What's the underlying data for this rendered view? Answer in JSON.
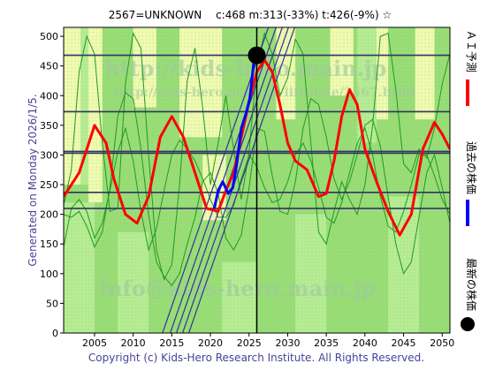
{
  "header": {
    "title": "2567=UNKNOWN　 c:468  m:313(-33%)  t:426(-9%)  ☆"
  },
  "side_labels": {
    "left": "Generated on Monday 2026/1/5.",
    "legend_prediction": "ＡＩ予測",
    "legend_past": "過去の株価",
    "legend_latest": "最新の株価"
  },
  "footer": {
    "copyright": "Copyright (c) Kids-Hero Research Institute. All Rights Reserved."
  },
  "watermarks": {
    "top": "http://kids-hero.main.jp",
    "mid": "http://kids-hero.main.jp/lifestyle/2567.html",
    "bottom": "info@kids-hero.main.jp"
  },
  "colors": {
    "plot_bg": "#99dd77",
    "band_light": "#ffffbb",
    "band_green": "#bbee99",
    "hline": "#333366",
    "thin_green": "#229922",
    "prediction": "#ff0000",
    "past": "#0000ff",
    "channel": "#333399",
    "latest_dot": "#000000"
  },
  "chart_data": {
    "type": "line",
    "xlim": [
      2001,
      2051
    ],
    "ylim": [
      0,
      515
    ],
    "x_ticks": [
      2005,
      2010,
      2015,
      2020,
      2025,
      2030,
      2035,
      2040,
      2045,
      2050
    ],
    "y_ticks": [
      0,
      50,
      100,
      150,
      200,
      250,
      300,
      350,
      400,
      450,
      500
    ],
    "grid": false,
    "horizontal_lines": [
      468,
      373,
      306,
      303,
      237,
      210
    ],
    "current_year": 2026,
    "latest": {
      "x": 2026,
      "y": 468
    },
    "series": [
      {
        "key": "prediction",
        "points": [
          [
            2001,
            230
          ],
          [
            2003,
            270
          ],
          [
            2005,
            350
          ],
          [
            2006.5,
            320
          ],
          [
            2007.5,
            260
          ],
          [
            2009,
            200
          ],
          [
            2010.5,
            185
          ],
          [
            2012,
            230
          ],
          [
            2013.5,
            330
          ],
          [
            2015,
            365
          ],
          [
            2016.5,
            330
          ],
          [
            2018,
            270
          ],
          [
            2019.5,
            210
          ],
          [
            2021,
            205
          ],
          [
            2022,
            240
          ],
          [
            2023,
            270
          ],
          [
            2024,
            330
          ],
          [
            2025,
            390
          ],
          [
            2026,
            440
          ],
          [
            2027,
            460
          ],
          [
            2028,
            440
          ],
          [
            2029,
            385
          ],
          [
            2030,
            320
          ],
          [
            2031,
            290
          ],
          [
            2032.5,
            275
          ],
          [
            2034,
            230
          ],
          [
            2035,
            235
          ],
          [
            2036,
            290
          ],
          [
            2037,
            365
          ],
          [
            2038,
            410
          ],
          [
            2039,
            385
          ],
          [
            2040,
            310
          ],
          [
            2041.5,
            255
          ],
          [
            2043,
            205
          ],
          [
            2044.5,
            165
          ],
          [
            2046,
            200
          ],
          [
            2047.5,
            310
          ],
          [
            2049,
            355
          ],
          [
            2050,
            335
          ],
          [
            2051,
            310
          ]
        ]
      },
      {
        "key": "past",
        "points": [
          [
            2020.5,
            210
          ],
          [
            2021,
            240
          ],
          [
            2021.6,
            255
          ],
          [
            2022.3,
            235
          ],
          [
            2022.9,
            245
          ],
          [
            2023.4,
            285
          ],
          [
            2024,
            345
          ],
          [
            2024.6,
            370
          ],
          [
            2025.1,
            395
          ],
          [
            2025.6,
            455
          ],
          [
            2026,
            468
          ]
        ]
      }
    ],
    "thin_lines": [
      {
        "points": [
          [
            2001,
            215
          ],
          [
            2002,
            275
          ],
          [
            2003,
            440
          ],
          [
            2004,
            500
          ],
          [
            2005,
            470
          ],
          [
            2006,
            320
          ],
          [
            2007,
            205
          ],
          [
            2008,
            210
          ],
          [
            2009,
            420
          ],
          [
            2010,
            505
          ],
          [
            2011,
            480
          ],
          [
            2012,
            300
          ],
          [
            2013,
            140
          ],
          [
            2014,
            90
          ],
          [
            2015,
            115
          ],
          [
            2016,
            250
          ],
          [
            2017,
            425
          ],
          [
            2018,
            480
          ],
          [
            2019,
            380
          ],
          [
            2020,
            250
          ],
          [
            2021,
            320
          ],
          [
            2022,
            400
          ],
          [
            2023,
            310
          ],
          [
            2024,
            225
          ],
          [
            2025,
            305
          ],
          [
            2026,
            450
          ],
          [
            2027,
            505
          ],
          [
            2028,
            470
          ],
          [
            2029,
            400
          ],
          [
            2030,
            430
          ],
          [
            2031,
            495
          ],
          [
            2032,
            470
          ],
          [
            2033,
            320
          ],
          [
            2034,
            170
          ],
          [
            2035,
            150
          ],
          [
            2036,
            205
          ],
          [
            2037,
            255
          ],
          [
            2038,
            225
          ],
          [
            2039,
            200
          ],
          [
            2040,
            250
          ],
          [
            2041,
            350
          ],
          [
            2042,
            500
          ],
          [
            2043,
            505
          ],
          [
            2044,
            410
          ],
          [
            2045,
            285
          ],
          [
            2046,
            270
          ],
          [
            2047,
            310
          ],
          [
            2048,
            295
          ],
          [
            2049,
            345
          ],
          [
            2050,
            420
          ],
          [
            2051,
            470
          ]
        ]
      },
      {
        "points": [
          [
            2001,
            200
          ],
          [
            2002,
            195
          ],
          [
            2003,
            205
          ],
          [
            2004,
            180
          ],
          [
            2005,
            145
          ],
          [
            2006,
            170
          ],
          [
            2007,
            245
          ],
          [
            2008,
            365
          ],
          [
            2009,
            405
          ],
          [
            2010,
            395
          ],
          [
            2011,
            310
          ],
          [
            2012,
            200
          ],
          [
            2013,
            120
          ],
          [
            2014,
            95
          ],
          [
            2015,
            80
          ],
          [
            2016,
            100
          ],
          [
            2017,
            150
          ],
          [
            2018,
            195
          ],
          [
            2019,
            255
          ],
          [
            2020,
            270
          ],
          [
            2021,
            235
          ],
          [
            2022,
            160
          ],
          [
            2023,
            140
          ],
          [
            2024,
            165
          ],
          [
            2025,
            245
          ],
          [
            2026,
            345
          ],
          [
            2027,
            340
          ],
          [
            2028,
            265
          ],
          [
            2029,
            205
          ],
          [
            2030,
            200
          ],
          [
            2031,
            255
          ],
          [
            2032,
            345
          ],
          [
            2033,
            395
          ],
          [
            2034,
            385
          ],
          [
            2035,
            330
          ],
          [
            2036,
            260
          ],
          [
            2037,
            225
          ],
          [
            2038,
            255
          ],
          [
            2039,
            300
          ],
          [
            2040,
            350
          ],
          [
            2041,
            360
          ],
          [
            2042,
            315
          ],
          [
            2043,
            230
          ],
          [
            2044,
            150
          ],
          [
            2045,
            100
          ],
          [
            2046,
            120
          ],
          [
            2047,
            195
          ],
          [
            2048,
            270
          ],
          [
            2049,
            300
          ],
          [
            2050,
            245
          ],
          [
            2051,
            185
          ]
        ]
      },
      {
        "points": [
          [
            2001,
            145
          ],
          [
            2002,
            210
          ],
          [
            2003,
            225
          ],
          [
            2004,
            205
          ],
          [
            2005,
            160
          ],
          [
            2006,
            185
          ],
          [
            2007,
            240
          ],
          [
            2008,
            305
          ],
          [
            2009,
            345
          ],
          [
            2010,
            290
          ],
          [
            2011,
            205
          ],
          [
            2012,
            140
          ],
          [
            2013,
            175
          ],
          [
            2014,
            240
          ],
          [
            2015,
            300
          ],
          [
            2016,
            325
          ],
          [
            2017,
            310
          ],
          [
            2018,
            290
          ],
          [
            2019,
            260
          ],
          [
            2020,
            225
          ],
          [
            2021,
            195
          ],
          [
            2022,
            195
          ],
          [
            2023,
            215
          ],
          [
            2024,
            260
          ],
          [
            2025,
            300
          ],
          [
            2026,
            280
          ],
          [
            2027,
            245
          ],
          [
            2028,
            220
          ],
          [
            2029,
            225
          ],
          [
            2030,
            255
          ],
          [
            2031,
            300
          ],
          [
            2032,
            320
          ],
          [
            2033,
            290
          ],
          [
            2034,
            245
          ],
          [
            2035,
            195
          ],
          [
            2036,
            185
          ],
          [
            2037,
            220
          ],
          [
            2038,
            270
          ],
          [
            2039,
            320
          ],
          [
            2040,
            345
          ],
          [
            2041,
            300
          ],
          [
            2042,
            230
          ],
          [
            2043,
            180
          ],
          [
            2044,
            170
          ],
          [
            2045,
            205
          ],
          [
            2046,
            250
          ],
          [
            2047,
            300
          ],
          [
            2048,
            300
          ],
          [
            2049,
            265
          ],
          [
            2050,
            225
          ],
          [
            2051,
            200
          ]
        ]
      }
    ],
    "channels": [
      {
        "from": [
          2013.8,
          0
        ],
        "to": [
          2027.5,
          515
        ]
      },
      {
        "from": [
          2014.8,
          0
        ],
        "to": [
          2028.5,
          515
        ]
      },
      {
        "from": [
          2015.6,
          0
        ],
        "to": [
          2029.3,
          515
        ]
      },
      {
        "from": [
          2016.4,
          0
        ],
        "to": [
          2030.1,
          515
        ]
      },
      {
        "from": [
          2017.2,
          0
        ],
        "to": [
          2030.9,
          515
        ]
      }
    ],
    "bands": [
      {
        "x0": 2001,
        "x1": 2003.2,
        "kind": "light",
        "y0": 250,
        "y1": 515
      },
      {
        "x0": 2003.2,
        "x1": 2004.2,
        "kind": "green",
        "y0": 250,
        "y1": 515
      },
      {
        "x0": 2004.2,
        "x1": 2006.0,
        "kind": "light",
        "y0": 220,
        "y1": 515
      },
      {
        "x0": 2010.0,
        "x1": 2013.0,
        "kind": "light",
        "y0": 380,
        "y1": 515
      },
      {
        "x0": 2016.0,
        "x1": 2021.5,
        "kind": "light",
        "y0": 330,
        "y1": 515
      },
      {
        "x0": 2028.5,
        "x1": 2031.0,
        "kind": "light",
        "y0": 360,
        "y1": 515
      },
      {
        "x0": 2035.5,
        "x1": 2038.5,
        "kind": "light",
        "y0": 400,
        "y1": 515
      },
      {
        "x0": 2039.0,
        "x1": 2041.5,
        "kind": "green",
        "y0": 320,
        "y1": 515
      },
      {
        "x0": 2041.5,
        "x1": 2043.0,
        "kind": "light",
        "y0": 360,
        "y1": 515
      },
      {
        "x0": 2046.5,
        "x1": 2049.0,
        "kind": "light",
        "y0": 360,
        "y1": 515
      },
      {
        "x0": 2001,
        "x1": 2005.0,
        "kind": "green",
        "y0": 0,
        "y1": 220
      },
      {
        "x0": 2008.0,
        "x1": 2012.0,
        "kind": "green",
        "y0": 0,
        "y1": 170
      },
      {
        "x0": 2021.5,
        "x1": 2026.0,
        "kind": "green",
        "y0": 0,
        "y1": 120
      },
      {
        "x0": 2031.0,
        "x1": 2035.0,
        "kind": "green",
        "y0": 0,
        "y1": 200
      },
      {
        "x0": 2043.0,
        "x1": 2047.0,
        "kind": "green",
        "y0": 0,
        "y1": 230
      },
      {
        "x0": 2019.0,
        "x1": 2022.0,
        "kind": "light",
        "y0": 190,
        "y1": 300
      }
    ]
  }
}
